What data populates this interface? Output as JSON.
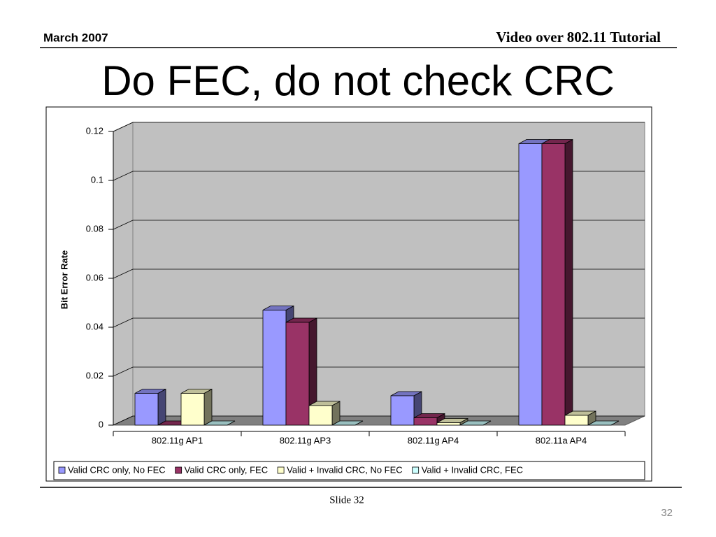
{
  "slide": {
    "date": "March 2007",
    "header": "Video over 802.11 Tutorial",
    "footer": "Slide 32",
    "page_number": "32"
  },
  "chart_data": {
    "type": "bar3d",
    "title": "Do FEC, do not check CRC",
    "y_label": "Bit Error Rate",
    "categories": [
      "802.11g AP1",
      "802.11g AP3",
      "802.11g AP4",
      "802.11a AP4"
    ],
    "series": [
      {
        "name": "Valid CRC only, No FEC",
        "color": "#9999ff",
        "values": [
          0.013,
          0.047,
          0.012,
          0.115
        ]
      },
      {
        "name": "Valid CRC only, FEC",
        "color": "#993366",
        "values": [
          0,
          0.042,
          0.003,
          0.115
        ]
      },
      {
        "name": "Valid + Invalid CRC, No FEC",
        "color": "#ffffcc",
        "values": [
          0.013,
          0.008,
          0.001,
          0.004
        ]
      },
      {
        "name": "Valid + Invalid CRC, FEC",
        "color": "#ccffff",
        "values": [
          0,
          0,
          0,
          0
        ]
      }
    ],
    "ylim": [
      0,
      0.12
    ],
    "yticks": [
      0,
      0.02,
      0.04,
      0.06,
      0.08,
      0.1,
      0.12
    ],
    "grid": true,
    "legend": "bottom"
  }
}
